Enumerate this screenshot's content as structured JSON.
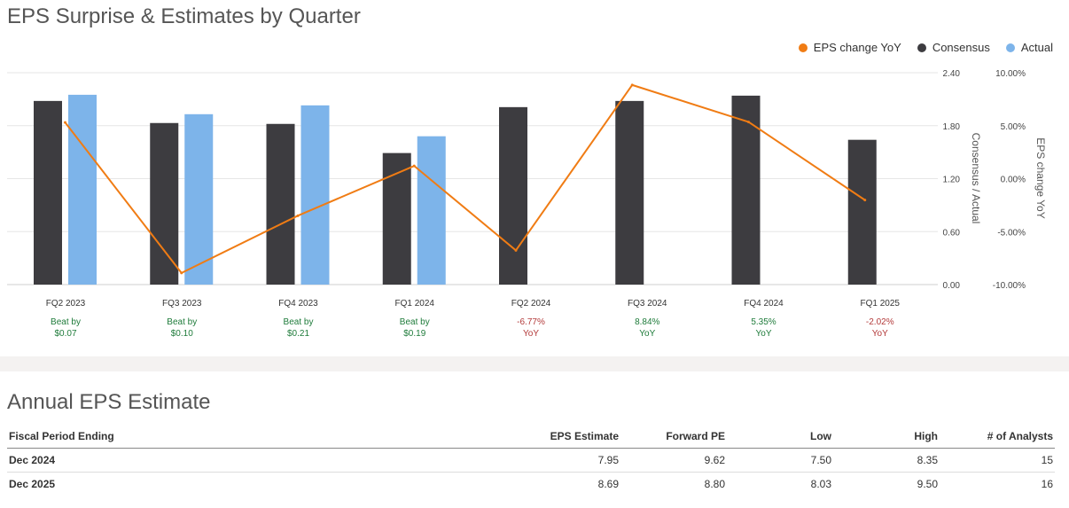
{
  "header": {
    "title": "EPS Surprise & Estimates by Quarter"
  },
  "legend": [
    {
      "label": "EPS change YoY",
      "color": "#f07c14"
    },
    {
      "label": "Consensus",
      "color": "#3d3c40"
    },
    {
      "label": "Actual",
      "color": "#7db4ea"
    }
  ],
  "chart_data": {
    "type": "bar",
    "categories": [
      "FQ2 2023",
      "FQ3 2023",
      "FQ4 2023",
      "FQ1 2024",
      "FQ2 2024",
      "FQ3 2024",
      "FQ4 2024",
      "FQ1 2025"
    ],
    "series": [
      {
        "name": "Consensus",
        "type": "bar",
        "axis": "left",
        "color": "#3d3c40",
        "values": [
          2.08,
          1.83,
          1.82,
          1.49,
          2.01,
          2.08,
          2.14,
          1.64
        ]
      },
      {
        "name": "Actual",
        "type": "bar",
        "axis": "left",
        "color": "#7db4ea",
        "values": [
          2.15,
          1.93,
          2.03,
          1.68,
          null,
          null,
          null,
          null
        ]
      },
      {
        "name": "EPS change YoY",
        "type": "line",
        "axis": "right",
        "color": "#f07c14",
        "values": [
          5.3,
          -8.9,
          -3.5,
          1.2,
          -6.77,
          8.84,
          5.35,
          -2.02
        ]
      }
    ],
    "annotations": [
      {
        "top": "Beat by",
        "bottom": "$0.07",
        "color": "#1e7b3a"
      },
      {
        "top": "Beat by",
        "bottom": "$0.10",
        "color": "#1e7b3a"
      },
      {
        "top": "Beat by",
        "bottom": "$0.21",
        "color": "#1e7b3a"
      },
      {
        "top": "Beat by",
        "bottom": "$0.19",
        "color": "#1e7b3a"
      },
      {
        "top": "-6.77%",
        "bottom": "YoY",
        "color": "#b33a3a"
      },
      {
        "top": "8.84%",
        "bottom": "YoY",
        "color": "#1e7b3a"
      },
      {
        "top": "5.35%",
        "bottom": "YoY",
        "color": "#1e7b3a"
      },
      {
        "top": "-2.02%",
        "bottom": "YoY",
        "color": "#b33a3a"
      }
    ],
    "y_left": {
      "label": "Consensus / Actual",
      "ylim": [
        0,
        2.4
      ],
      "ticks": [
        "0.00",
        "0.60",
        "1.20",
        "1.80",
        "2.40"
      ]
    },
    "y_right": {
      "label": "EPS change YoY",
      "ylim": [
        -10,
        10
      ],
      "ticks": [
        "-10.00%",
        "-5.00%",
        "0.00%",
        "5.00%",
        "10.00%"
      ]
    },
    "grid": true,
    "legend_position": "top-right"
  },
  "annual": {
    "title": "Annual EPS Estimate",
    "columns": [
      "Fiscal Period Ending",
      "EPS Estimate",
      "Forward PE",
      "Low",
      "High",
      "# of Analysts"
    ],
    "rows": [
      [
        "Dec 2024",
        "7.95",
        "9.62",
        "7.50",
        "8.35",
        "15"
      ],
      [
        "Dec 2025",
        "8.69",
        "8.80",
        "8.03",
        "9.50",
        "16"
      ]
    ]
  }
}
